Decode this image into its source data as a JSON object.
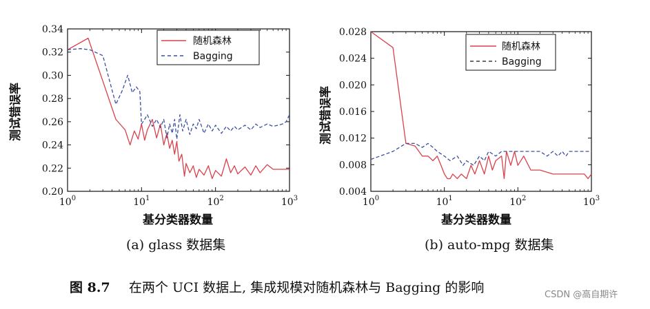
{
  "chart_data": [
    {
      "type": "line",
      "subtitle": "(a) glass 数据集",
      "xlabel": "基分类器数量",
      "ylabel": "测试错误率",
      "x_scale": "log",
      "xlim": [
        1,
        1000
      ],
      "ylim": [
        0.2,
        0.34
      ],
      "xticks": [
        "10^0",
        "10^1",
        "10^2",
        "10^3"
      ],
      "yticks": [
        "0.20",
        "0.22",
        "0.24",
        "0.26",
        "0.28",
        "0.30",
        "0.32",
        "0.34"
      ],
      "legend_position": "top-right",
      "series": [
        {
          "name": "随机森林",
          "color": "#d9404a",
          "style": "solid",
          "x": [
            1,
            1.9,
            3,
            4.5,
            6,
            7,
            8,
            9,
            10,
            11,
            12,
            14,
            16,
            18,
            20,
            22,
            24,
            26,
            28,
            30,
            32,
            35,
            38,
            40,
            45,
            50,
            55,
            60,
            70,
            80,
            90,
            100,
            120,
            140,
            160,
            180,
            200,
            250,
            300,
            350,
            400,
            500,
            600,
            700,
            800,
            1000
          ],
          "y": [
            0.322,
            0.332,
            0.295,
            0.262,
            0.253,
            0.24,
            0.252,
            0.245,
            0.258,
            0.244,
            0.253,
            0.262,
            0.246,
            0.258,
            0.24,
            0.25,
            0.237,
            0.244,
            0.232,
            0.243,
            0.226,
            0.232,
            0.213,
            0.224,
            0.216,
            0.222,
            0.212,
            0.219,
            0.214,
            0.222,
            0.211,
            0.218,
            0.213,
            0.228,
            0.216,
            0.222,
            0.215,
            0.221,
            0.214,
            0.222,
            0.216,
            0.223,
            0.219,
            0.219,
            0.219,
            0.219
          ]
        },
        {
          "name": "Bagging",
          "color": "#3a4fa0",
          "style": "dashed",
          "x": [
            1,
            1.5,
            2,
            3,
            4.5,
            5.5,
            6.5,
            7.5,
            8.5,
            9.5,
            10,
            11,
            12,
            14,
            16,
            18,
            20,
            22,
            24,
            26,
            28,
            30,
            33,
            36,
            40,
            45,
            50,
            55,
            60,
            70,
            80,
            90,
            100,
            120,
            140,
            160,
            180,
            200,
            250,
            300,
            350,
            400,
            500,
            600,
            700,
            800,
            900,
            1000
          ],
          "y": [
            0.322,
            0.323,
            0.322,
            0.317,
            0.275,
            0.287,
            0.3,
            0.285,
            0.29,
            0.286,
            0.258,
            0.262,
            0.266,
            0.256,
            0.262,
            0.255,
            0.262,
            0.246,
            0.258,
            0.25,
            0.262,
            0.245,
            0.266,
            0.252,
            0.262,
            0.249,
            0.258,
            0.254,
            0.262,
            0.25,
            0.258,
            0.252,
            0.257,
            0.25,
            0.256,
            0.252,
            0.256,
            0.253,
            0.257,
            0.253,
            0.258,
            0.255,
            0.258,
            0.256,
            0.257,
            0.258,
            0.26,
            0.266
          ]
        }
      ]
    },
    {
      "type": "line",
      "subtitle": "(b) auto-mpg 数据集",
      "xlabel": "基分类器数量",
      "ylabel": "测试错误率",
      "x_scale": "log",
      "xlim": [
        1,
        1000
      ],
      "ylim": [
        0.004,
        0.028
      ],
      "xticks": [
        "10^0",
        "10^1",
        "10^2",
        "10^3"
      ],
      "yticks": [
        "0.004",
        "0.008",
        "0.012",
        "0.016",
        "0.020",
        "0.024",
        "0.028"
      ],
      "legend_position": "top-right",
      "series": [
        {
          "name": "随机森林",
          "color": "#d9404a",
          "style": "solid",
          "x": [
            1,
            2,
            3,
            4,
            5,
            6,
            7,
            8,
            9,
            10,
            11,
            12,
            13,
            15,
            17,
            20,
            23,
            26,
            30,
            35,
            40,
            45,
            50,
            60,
            65,
            70,
            80,
            90,
            100,
            120,
            150,
            200,
            300,
            400,
            500,
            600,
            700,
            800,
            900,
            1000
          ],
          "y": [
            0.028,
            0.0256,
            0.0112,
            0.0108,
            0.0093,
            0.0093,
            0.0086,
            0.0093,
            0.0079,
            0.0066,
            0.0059,
            0.0059,
            0.0066,
            0.0059,
            0.0066,
            0.0059,
            0.0079,
            0.0066,
            0.0086,
            0.0066,
            0.0093,
            0.0072,
            0.0086,
            0.0093,
            0.0059,
            0.01,
            0.0079,
            0.01,
            0.0079,
            0.0093,
            0.0072,
            0.0072,
            0.0066,
            0.0066,
            0.0066,
            0.0066,
            0.0066,
            0.0066,
            0.0059,
            0.0066
          ]
        },
        {
          "name": "Bagging",
          "color": "#3a4fa0",
          "style": "dashed",
          "x": [
            1,
            2,
            3,
            4,
            5,
            6,
            7,
            8,
            10,
            12,
            15,
            18,
            20,
            25,
            30,
            35,
            40,
            50,
            60,
            70,
            80,
            100,
            150,
            200,
            250,
            300,
            350,
            400,
            450,
            500,
            600,
            800,
            1000
          ],
          "y": [
            0.0088,
            0.01,
            0.0112,
            0.0112,
            0.0106,
            0.0112,
            0.0106,
            0.01,
            0.0093,
            0.0086,
            0.0093,
            0.0079,
            0.0086,
            0.0079,
            0.0093,
            0.0086,
            0.01,
            0.0093,
            0.01,
            0.01,
            0.01,
            0.01,
            0.01,
            0.01,
            0.0093,
            0.01,
            0.0093,
            0.01,
            0.0093,
            0.01,
            0.01,
            0.01,
            0.01
          ]
        }
      ]
    }
  ],
  "caption": {
    "figure_label": "图 8.7",
    "text": "在两个 UCI 数据上, 集成规模对随机森林与 Bagging 的影响"
  },
  "watermark": "CSDN @高自期许"
}
